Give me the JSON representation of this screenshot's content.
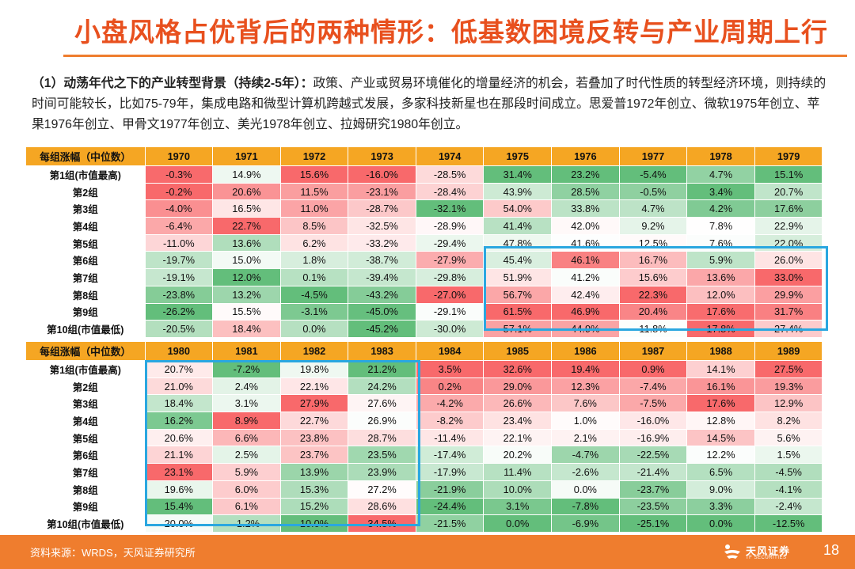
{
  "title": "小盘风格占优背后的两种情形：低基数困境反转与产业周期上行",
  "paragraph": {
    "lead": "（1）动荡年代之下的产业转型背景（持续2-5年）：",
    "body": "政策、产业或贸易环境催化的增量经济的机会，若叠加了时代性质的转型经济环境，则持续的时间可能较长，比如75-79年，集成电路和微型计算机跨越式发展，多家科技新星也在那段时间成立。思爱普1972年创立、微软1975年创立、苹果1976年创立、甲骨文1977年创立、美光1978年创立、拉姆研究1980年创立。"
  },
  "row_labels": [
    "第1组(市值最高)",
    "第2组",
    "第3组",
    "第4组",
    "第5组",
    "第6组",
    "第7组",
    "第8组",
    "第9组",
    "第10组(市值最低)"
  ],
  "header_label": "每组涨幅（中位数）",
  "tables": [
    {
      "years": [
        "1970",
        "1971",
        "1972",
        "1973",
        "1974",
        "1975",
        "1976",
        "1977",
        "1978",
        "1979"
      ],
      "rows": [
        [
          "-0.3%",
          "14.9%",
          "15.6%",
          "-16.0%",
          "-28.5%",
          "31.4%",
          "23.2%",
          "-5.4%",
          "4.7%",
          "15.1%"
        ],
        [
          "-0.2%",
          "20.6%",
          "11.5%",
          "-23.1%",
          "-28.4%",
          "43.9%",
          "28.5%",
          "-0.5%",
          "3.4%",
          "20.7%"
        ],
        [
          "-4.0%",
          "16.5%",
          "11.0%",
          "-28.7%",
          "-32.1%",
          "54.0%",
          "33.8%",
          "4.7%",
          "4.2%",
          "17.6%"
        ],
        [
          "-6.4%",
          "22.7%",
          "8.5%",
          "-32.5%",
          "-28.9%",
          "41.4%",
          "42.0%",
          "9.2%",
          "7.8%",
          "22.9%"
        ],
        [
          "-11.0%",
          "13.6%",
          "6.2%",
          "-33.2%",
          "-29.4%",
          "47.8%",
          "41.6%",
          "12.5%",
          "7.6%",
          "22.0%"
        ],
        [
          "-19.7%",
          "15.0%",
          "1.8%",
          "-38.7%",
          "-27.9%",
          "45.4%",
          "46.1%",
          "16.7%",
          "5.9%",
          "26.0%"
        ],
        [
          "-19.1%",
          "12.0%",
          "0.1%",
          "-39.4%",
          "-29.8%",
          "51.9%",
          "41.2%",
          "15.6%",
          "13.6%",
          "33.0%"
        ],
        [
          "-23.8%",
          "13.2%",
          "-4.5%",
          "-43.2%",
          "-27.0%",
          "56.7%",
          "42.4%",
          "22.3%",
          "12.0%",
          "29.9%"
        ],
        [
          "-26.2%",
          "15.5%",
          "-3.1%",
          "-45.0%",
          "-29.1%",
          "61.5%",
          "46.9%",
          "20.4%",
          "17.6%",
          "31.7%"
        ],
        [
          "-20.5%",
          "18.4%",
          "0.0%",
          "-45.2%",
          "-30.0%",
          "57.1%",
          "44.9%",
          "11.8%",
          "17.8%",
          "27.4%"
        ]
      ]
    },
    {
      "years": [
        "1980",
        "1981",
        "1982",
        "1983",
        "1984",
        "1985",
        "1986",
        "1987",
        "1988",
        "1989"
      ],
      "rows": [
        [
          "20.7%",
          "-7.2%",
          "19.8%",
          "21.2%",
          "3.5%",
          "32.6%",
          "19.4%",
          "0.9%",
          "14.1%",
          "27.5%"
        ],
        [
          "21.0%",
          "2.4%",
          "22.1%",
          "24.2%",
          "0.2%",
          "29.0%",
          "12.3%",
          "-7.4%",
          "16.1%",
          "19.3%"
        ],
        [
          "18.4%",
          "3.1%",
          "27.9%",
          "27.6%",
          "-4.2%",
          "26.6%",
          "7.6%",
          "-7.5%",
          "17.6%",
          "12.9%"
        ],
        [
          "16.2%",
          "8.9%",
          "22.7%",
          "26.9%",
          "-8.2%",
          "23.4%",
          "1.0%",
          "-16.0%",
          "12.8%",
          "8.2%"
        ],
        [
          "20.6%",
          "6.6%",
          "23.8%",
          "28.7%",
          "-11.4%",
          "22.1%",
          "2.1%",
          "-16.9%",
          "14.5%",
          "5.6%"
        ],
        [
          "21.1%",
          "2.5%",
          "23.7%",
          "23.5%",
          "-17.4%",
          "20.2%",
          "-4.7%",
          "-22.5%",
          "12.2%",
          "1.5%"
        ],
        [
          "23.1%",
          "5.9%",
          "13.9%",
          "23.9%",
          "-17.9%",
          "11.4%",
          "-2.6%",
          "-21.4%",
          "6.5%",
          "-4.5%"
        ],
        [
          "19.6%",
          "6.0%",
          "15.3%",
          "27.2%",
          "-21.9%",
          "10.0%",
          "0.0%",
          "-23.7%",
          "9.0%",
          "-4.1%"
        ],
        [
          "15.4%",
          "6.1%",
          "15.2%",
          "28.6%",
          "-24.4%",
          "3.1%",
          "-7.8%",
          "-23.5%",
          "3.3%",
          "-2.4%"
        ],
        [
          "20.0%",
          "-1.2%",
          "10.0%",
          "34.5%",
          "-21.5%",
          "0.0%",
          "-6.9%",
          "-25.1%",
          "0.0%",
          "-12.5%"
        ]
      ]
    }
  ],
  "colors": {
    "title": "#e8501e",
    "header_bg": "#f5a623",
    "high": "#f8696b",
    "mid": "#ffffff",
    "low": "#63be7b",
    "highlight_box": "#2aa7e0",
    "footer": "#ef7d2e"
  },
  "footer": {
    "source": "资料来源：WRDS，天风证券研究所",
    "logo_cn": "天风证券",
    "logo_en": "TF SECURITIES",
    "page": "18"
  }
}
